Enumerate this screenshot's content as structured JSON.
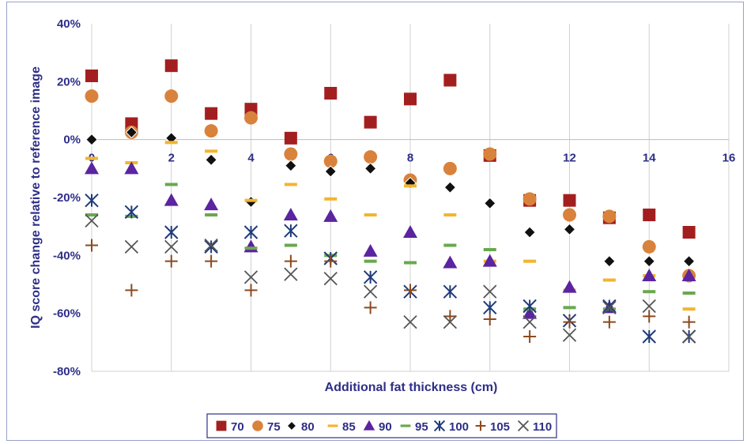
{
  "chart_data": {
    "type": "scatter",
    "title": "",
    "xlabel": "Additional fat thickness (cm)",
    "ylabel": "IQ score change relative to reference image",
    "xlim": [
      0,
      16
    ],
    "ylim": [
      -80,
      40
    ],
    "x_ticks": [
      "0",
      "2",
      "4",
      "6",
      "8",
      "10",
      "12",
      "14",
      "16"
    ],
    "y_ticks": [
      "40%",
      "20%",
      "0%",
      "-20%",
      "-40%",
      "-60%",
      "-80%"
    ],
    "grid": "vertical",
    "legend_position": "bottom",
    "series": [
      {
        "name": "70",
        "marker": "square",
        "color": "#a31f1f",
        "x": [
          0,
          1,
          2,
          3,
          4,
          5,
          6,
          7,
          8,
          9,
          10,
          11,
          12,
          13,
          14,
          15
        ],
        "y": [
          22,
          5.5,
          25.5,
          9,
          10.5,
          0.5,
          16,
          6,
          14,
          20.5,
          -5.5,
          -21,
          -21,
          -27,
          -26,
          -32
        ]
      },
      {
        "name": "75",
        "marker": "circle",
        "color": "#d9823b",
        "x": [
          0,
          1,
          2,
          3,
          4,
          5,
          6,
          7,
          8,
          9,
          10,
          11,
          12,
          13,
          14,
          15
        ],
        "y": [
          15,
          2.5,
          15,
          3,
          7.5,
          -5,
          -7.5,
          -6,
          -14,
          -10,
          -5,
          -20.5,
          -26,
          -26.5,
          -37,
          -47
        ]
      },
      {
        "name": "80",
        "marker": "diamond",
        "color": "#111111",
        "x": [
          0,
          1,
          2,
          3,
          4,
          5,
          6,
          7,
          8,
          9,
          10,
          11,
          12,
          13,
          14,
          15
        ],
        "y": [
          0,
          2.5,
          0.5,
          -7,
          -21.5,
          -9,
          -11,
          -10,
          -15,
          -16.5,
          -22,
          -32,
          -31,
          -42,
          -42,
          -42
        ]
      },
      {
        "name": "85",
        "marker": "dash",
        "color": "#f2b52e",
        "x": [
          0,
          1,
          2,
          3,
          4,
          5,
          6,
          7,
          8,
          9,
          10,
          11,
          12,
          13,
          14,
          15
        ],
        "y": [
          -6.5,
          -8,
          -1,
          -4,
          -21,
          -15.5,
          -20.5,
          -26,
          -16,
          -26,
          -42,
          -42,
          -52,
          -48.5,
          -47,
          -58.5
        ]
      },
      {
        "name": "90",
        "marker": "triangle",
        "color": "#5b24a0",
        "x": [
          0,
          1,
          2,
          3,
          4,
          5,
          6,
          7,
          8,
          9,
          10,
          11,
          12,
          13,
          14,
          15
        ],
        "y": [
          -10,
          -10,
          -21,
          -22.5,
          -37,
          -26,
          -26.5,
          -38.5,
          -32,
          -42.5,
          -42,
          -60,
          -51,
          -58,
          -47,
          -47
        ]
      },
      {
        "name": "95",
        "marker": "dash",
        "color": "#6aa84f",
        "x": [
          0,
          1,
          2,
          3,
          4,
          5,
          6,
          7,
          8,
          9,
          10,
          11,
          12,
          13,
          14,
          15
        ],
        "y": [
          -26,
          -26.5,
          -15.5,
          -26,
          -37.5,
          -36.5,
          -40,
          -42,
          -42.5,
          -36.5,
          -38,
          -58.5,
          -58,
          -58.5,
          -52.5,
          -53
        ]
      },
      {
        "name": "100",
        "marker": "asterisk",
        "color": "#1f3b7a",
        "x": [
          0,
          1,
          2,
          3,
          4,
          5,
          6,
          7,
          8,
          9,
          10,
          11,
          12,
          13,
          14,
          15
        ],
        "y": [
          -21,
          -25,
          -32,
          -37,
          -32,
          -31.5,
          -41,
          -47.5,
          -52.5,
          -52.5,
          -58,
          -57.5,
          -62.5,
          -57.5,
          -68,
          -68
        ]
      },
      {
        "name": "105",
        "marker": "plus",
        "color": "#8b4a1f",
        "x": [
          0,
          1,
          2,
          3,
          4,
          5,
          6,
          7,
          8,
          9,
          10,
          11,
          12,
          13,
          14,
          15
        ],
        "y": [
          -36.5,
          -52,
          -42,
          -42,
          -52,
          -42,
          -42,
          -58,
          -52,
          -61,
          -62,
          -68,
          -63,
          -63,
          -61,
          -63
        ]
      },
      {
        "name": "110",
        "marker": "cross",
        "color": "#555555",
        "x": [
          0,
          1,
          2,
          3,
          4,
          5,
          6,
          7,
          8,
          9,
          10,
          11,
          12,
          13,
          14,
          15
        ],
        "y": [
          -28,
          -37,
          -37,
          -36.5,
          -47.5,
          -46.5,
          -48,
          -52.5,
          -63,
          -63,
          -52.5,
          -63,
          -67.5,
          -58,
          -57.5,
          -68
        ]
      }
    ]
  }
}
